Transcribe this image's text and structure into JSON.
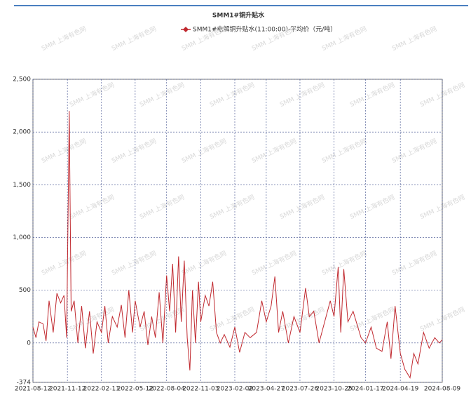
{
  "chart_data": {
    "type": "line",
    "title": "SMM1#铜升贴水",
    "watermark": "SMM 上海有色网",
    "xlim": [
      "2021-08-12",
      "2024-08-09"
    ],
    "xticks": [
      "2021-08-12",
      "2021-11-12",
      "2022-02-11",
      "2022-05-12",
      "2022-08-04",
      "2022-11-03",
      "2023-02-02",
      "2023-04-27",
      "2023-07-26",
      "2023-10-25",
      "2024-01-17",
      "2024-04-19",
      "2024-08-09"
    ],
    "ylim": [
      -374,
      2500
    ],
    "yticks": [
      -374,
      0,
      500,
      {
        "value": 1000,
        "label": "1,000"
      },
      {
        "value": 1500,
        "label": "1,500"
      },
      {
        "value": 2000,
        "label": "2,000"
      },
      {
        "value": 2500,
        "label": "2,500"
      }
    ],
    "grid": true,
    "x": [
      "2021-08-12",
      "2021-08-20",
      "2021-08-28",
      "2021-09-08",
      "2021-09-16",
      "2021-09-24",
      "2021-10-05",
      "2021-10-15",
      "2021-10-25",
      "2021-11-03",
      "2021-11-10",
      "2021-11-17",
      "2021-11-22",
      "2021-11-30",
      "2021-12-10",
      "2021-12-20",
      "2021-12-30",
      "2022-01-10",
      "2022-01-20",
      "2022-01-30",
      "2022-02-11",
      "2022-02-20",
      "2022-03-01",
      "2022-03-12",
      "2022-03-25",
      "2022-04-05",
      "2022-04-15",
      "2022-04-25",
      "2022-05-05",
      "2022-05-12",
      "2022-05-25",
      "2022-06-05",
      "2022-06-15",
      "2022-06-25",
      "2022-07-05",
      "2022-07-15",
      "2022-07-25",
      "2022-08-04",
      "2022-08-12",
      "2022-08-20",
      "2022-08-28",
      "2022-09-05",
      "2022-09-12",
      "2022-09-20",
      "2022-09-28",
      "2022-10-05",
      "2022-10-12",
      "2022-10-20",
      "2022-10-28",
      "2022-11-03",
      "2022-11-15",
      "2022-11-25",
      "2022-12-05",
      "2022-12-15",
      "2022-12-25",
      "2023-01-05",
      "2023-01-20",
      "2023-02-02",
      "2023-02-15",
      "2023-03-01",
      "2023-03-15",
      "2023-04-01",
      "2023-04-15",
      "2023-04-27",
      "2023-05-10",
      "2023-05-20",
      "2023-05-30",
      "2023-06-10",
      "2023-06-25",
      "2023-07-10",
      "2023-07-26",
      "2023-08-10",
      "2023-08-20",
      "2023-09-01",
      "2023-09-15",
      "2023-09-30",
      "2023-10-15",
      "2023-10-25",
      "2023-11-05",
      "2023-11-12",
      "2023-11-20",
      "2023-12-01",
      "2023-12-15",
      "2024-01-05",
      "2024-01-17",
      "2024-02-01",
      "2024-02-15",
      "2024-03-01",
      "2024-03-15",
      "2024-03-25",
      "2024-04-05",
      "2024-04-19",
      "2024-05-01",
      "2024-05-15",
      "2024-05-25",
      "2024-06-05",
      "2024-06-20",
      "2024-07-05",
      "2024-07-20",
      "2024-08-01",
      "2024-08-09"
    ],
    "series": [
      {
        "name": "SMM1#电解铜升贴水(11:00:00)-平均价（元/吨）",
        "color": "#c0282e",
        "values": [
          150,
          50,
          200,
          180,
          20,
          400,
          100,
          470,
          380,
          450,
          50,
          2200,
          300,
          400,
          0,
          350,
          -50,
          300,
          -100,
          200,
          100,
          350,
          0,
          250,
          150,
          360,
          50,
          500,
          100,
          400,
          150,
          300,
          -20,
          250,
          50,
          480,
          0,
          640,
          300,
          750,
          100,
          820,
          200,
          780,
          50,
          -260,
          500,
          0,
          580,
          200,
          450,
          350,
          580,
          100,
          0,
          80,
          -40,
          150,
          -90,
          100,
          50,
          100,
          400,
          200,
          350,
          630,
          100,
          300,
          0,
          250,
          100,
          520,
          250,
          300,
          0,
          200,
          400,
          250,
          720,
          100,
          700,
          200,
          300,
          50,
          0,
          150,
          -50,
          -80,
          200,
          -150,
          350,
          -100,
          -250,
          -330,
          -100,
          -200,
          100,
          -50,
          50,
          0,
          30
        ]
      }
    ]
  }
}
